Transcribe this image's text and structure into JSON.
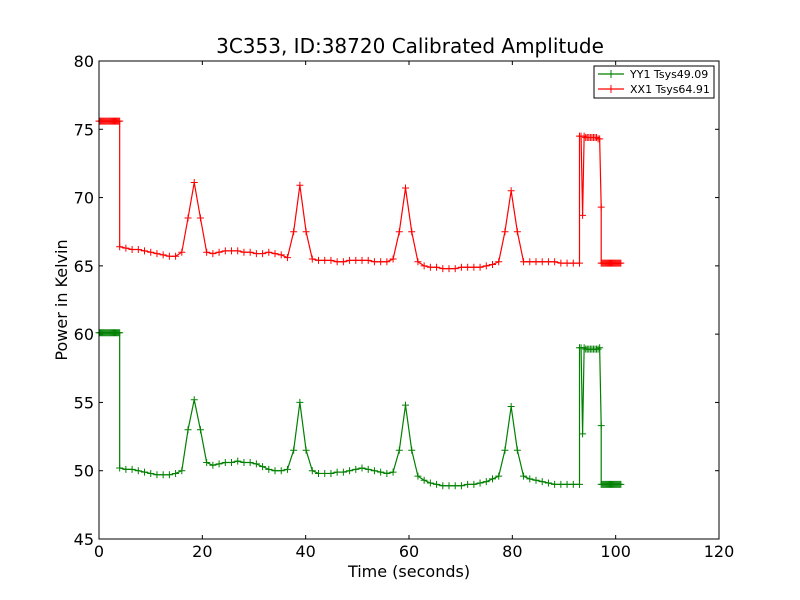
{
  "chart_data": {
    "type": "line",
    "title": "3C353, ID:38720 Calibrated Amplitude",
    "xlabel": "Time (seconds)",
    "ylabel": "Power in Kelvin",
    "xlim": [
      0,
      120
    ],
    "ylim": [
      45,
      80
    ],
    "xticks": [
      0,
      20,
      40,
      60,
      80,
      100,
      120
    ],
    "yticks": [
      45,
      50,
      55,
      60,
      65,
      70,
      75,
      80
    ],
    "grid": false,
    "legend_position": "top-right",
    "marker": "plus",
    "series": [
      {
        "name": "YY1 Tsys49.09",
        "color": "#008000",
        "segments": [
          {
            "x_start": 0,
            "x_end": 4,
            "value": 60.1
          },
          {
            "x_start": 4,
            "x_end": 93,
            "y": [
              50.2,
              50.1,
              50.1,
              50.0,
              49.9,
              49.8,
              49.7,
              49.7,
              49.7,
              49.8,
              50.0,
              53.0,
              55.2,
              53.0,
              50.6,
              50.4,
              50.5,
              50.6,
              50.6,
              50.7,
              50.6,
              50.6,
              50.5,
              50.3,
              50.1,
              50.0,
              50.0,
              50.1,
              51.5,
              55.0,
              51.5,
              50.0,
              49.8,
              49.8,
              49.8,
              49.9,
              49.9,
              50.0,
              50.1,
              50.2,
              50.1,
              50.0,
              49.9,
              49.8,
              49.9,
              51.5,
              54.8,
              51.5,
              49.6,
              49.3,
              49.1,
              49.0,
              48.9,
              48.9,
              48.9,
              48.9,
              49.0,
              49.0,
              49.1,
              49.2,
              49.4,
              49.6,
              51.5,
              54.7,
              51.5,
              49.6,
              49.4,
              49.3,
              49.2,
              49.1,
              49.0,
              49.0,
              49.0,
              49.0,
              49.0
            ]
          },
          {
            "x_start": 93,
            "x_end": 97.2,
            "y": [
              59.0,
              59.0,
              52.7,
              59.0,
              58.9,
              58.9,
              58.9,
              58.9,
              58.9,
              58.9,
              58.9,
              58.9,
              58.9,
              59.0,
              53.3
            ]
          },
          {
            "x_start": 97.2,
            "x_end": 101,
            "value": 49.0
          }
        ]
      },
      {
        "name": "XX1 Tsys64.91",
        "color": "#ff0000",
        "segments": [
          {
            "x_start": 0,
            "x_end": 4,
            "value": 75.6
          },
          {
            "x_start": 4,
            "x_end": 93,
            "y": [
              66.4,
              66.3,
              66.2,
              66.2,
              66.1,
              66.0,
              65.9,
              65.8,
              65.7,
              65.7,
              66.0,
              68.5,
              71.1,
              68.5,
              66.0,
              65.9,
              66.0,
              66.1,
              66.1,
              66.1,
              66.0,
              66.0,
              65.9,
              65.9,
              66.0,
              65.9,
              65.8,
              65.6,
              67.5,
              70.9,
              67.5,
              65.5,
              65.4,
              65.4,
              65.4,
              65.3,
              65.3,
              65.4,
              65.4,
              65.4,
              65.4,
              65.3,
              65.3,
              65.3,
              65.5,
              67.5,
              70.7,
              67.5,
              65.3,
              65.0,
              64.9,
              64.9,
              64.8,
              64.8,
              64.8,
              64.9,
              64.9,
              64.9,
              64.9,
              65.0,
              65.1,
              65.3,
              67.5,
              70.5,
              67.5,
              65.3,
              65.3,
              65.3,
              65.3,
              65.3,
              65.3,
              65.2,
              65.2,
              65.2,
              65.2
            ]
          },
          {
            "x_start": 93,
            "x_end": 97.2,
            "y": [
              74.5,
              74.5,
              68.7,
              74.5,
              74.4,
              74.4,
              74.4,
              74.4,
              74.4,
              74.4,
              74.4,
              74.4,
              74.3,
              74.3,
              69.3
            ]
          },
          {
            "x_start": 97.2,
            "x_end": 101,
            "value": 65.2
          }
        ]
      }
    ]
  }
}
